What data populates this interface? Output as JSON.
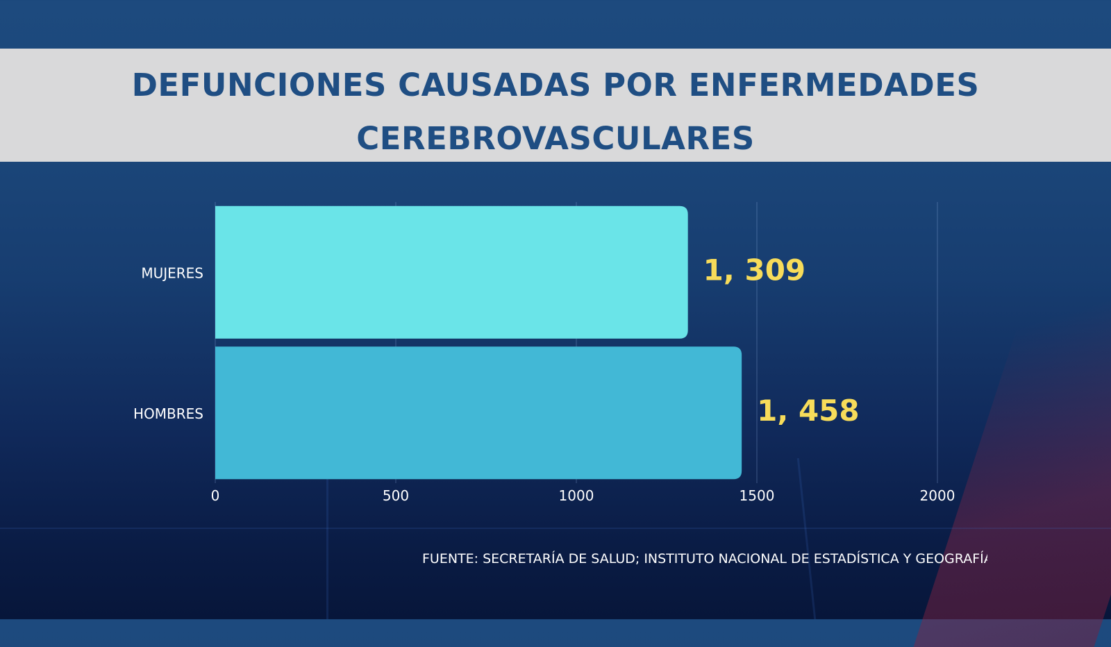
{
  "title_lines": [
    "DEFUNCIONES CAUSADAS POR ENFERMEDADES",
    "CEREBROVASCULARES"
  ],
  "source_text": "FUENTE: SECRETARÍA DE SALUD; INSTITUTO NACIONAL DE ESTADÍSTICA Y GEOGRAFÍA (INEGI)",
  "chart_data": {
    "type": "bar",
    "orientation": "horizontal",
    "title": "DEFUNCIONES CAUSADAS POR ENFERMEDADES CEREBROVASCULARES",
    "categories": [
      "MUJERES",
      "HOMBRES"
    ],
    "values": [
      1309,
      1458
    ],
    "value_labels": [
      "1, 309",
      "1, 458"
    ],
    "xticks": [
      "0",
      "500",
      "1000",
      "1500",
      "2000"
    ],
    "xlim": [
      0,
      2000
    ],
    "grid": true,
    "legend": "none",
    "colors": {
      "MUJERES": "#6ae4e8",
      "HOMBRES": "#42b8d6",
      "value_label": "#f7dc5a",
      "axis_text": "#ffffff",
      "title": "#1f4e83",
      "title_band": "#d9d9da"
    }
  }
}
